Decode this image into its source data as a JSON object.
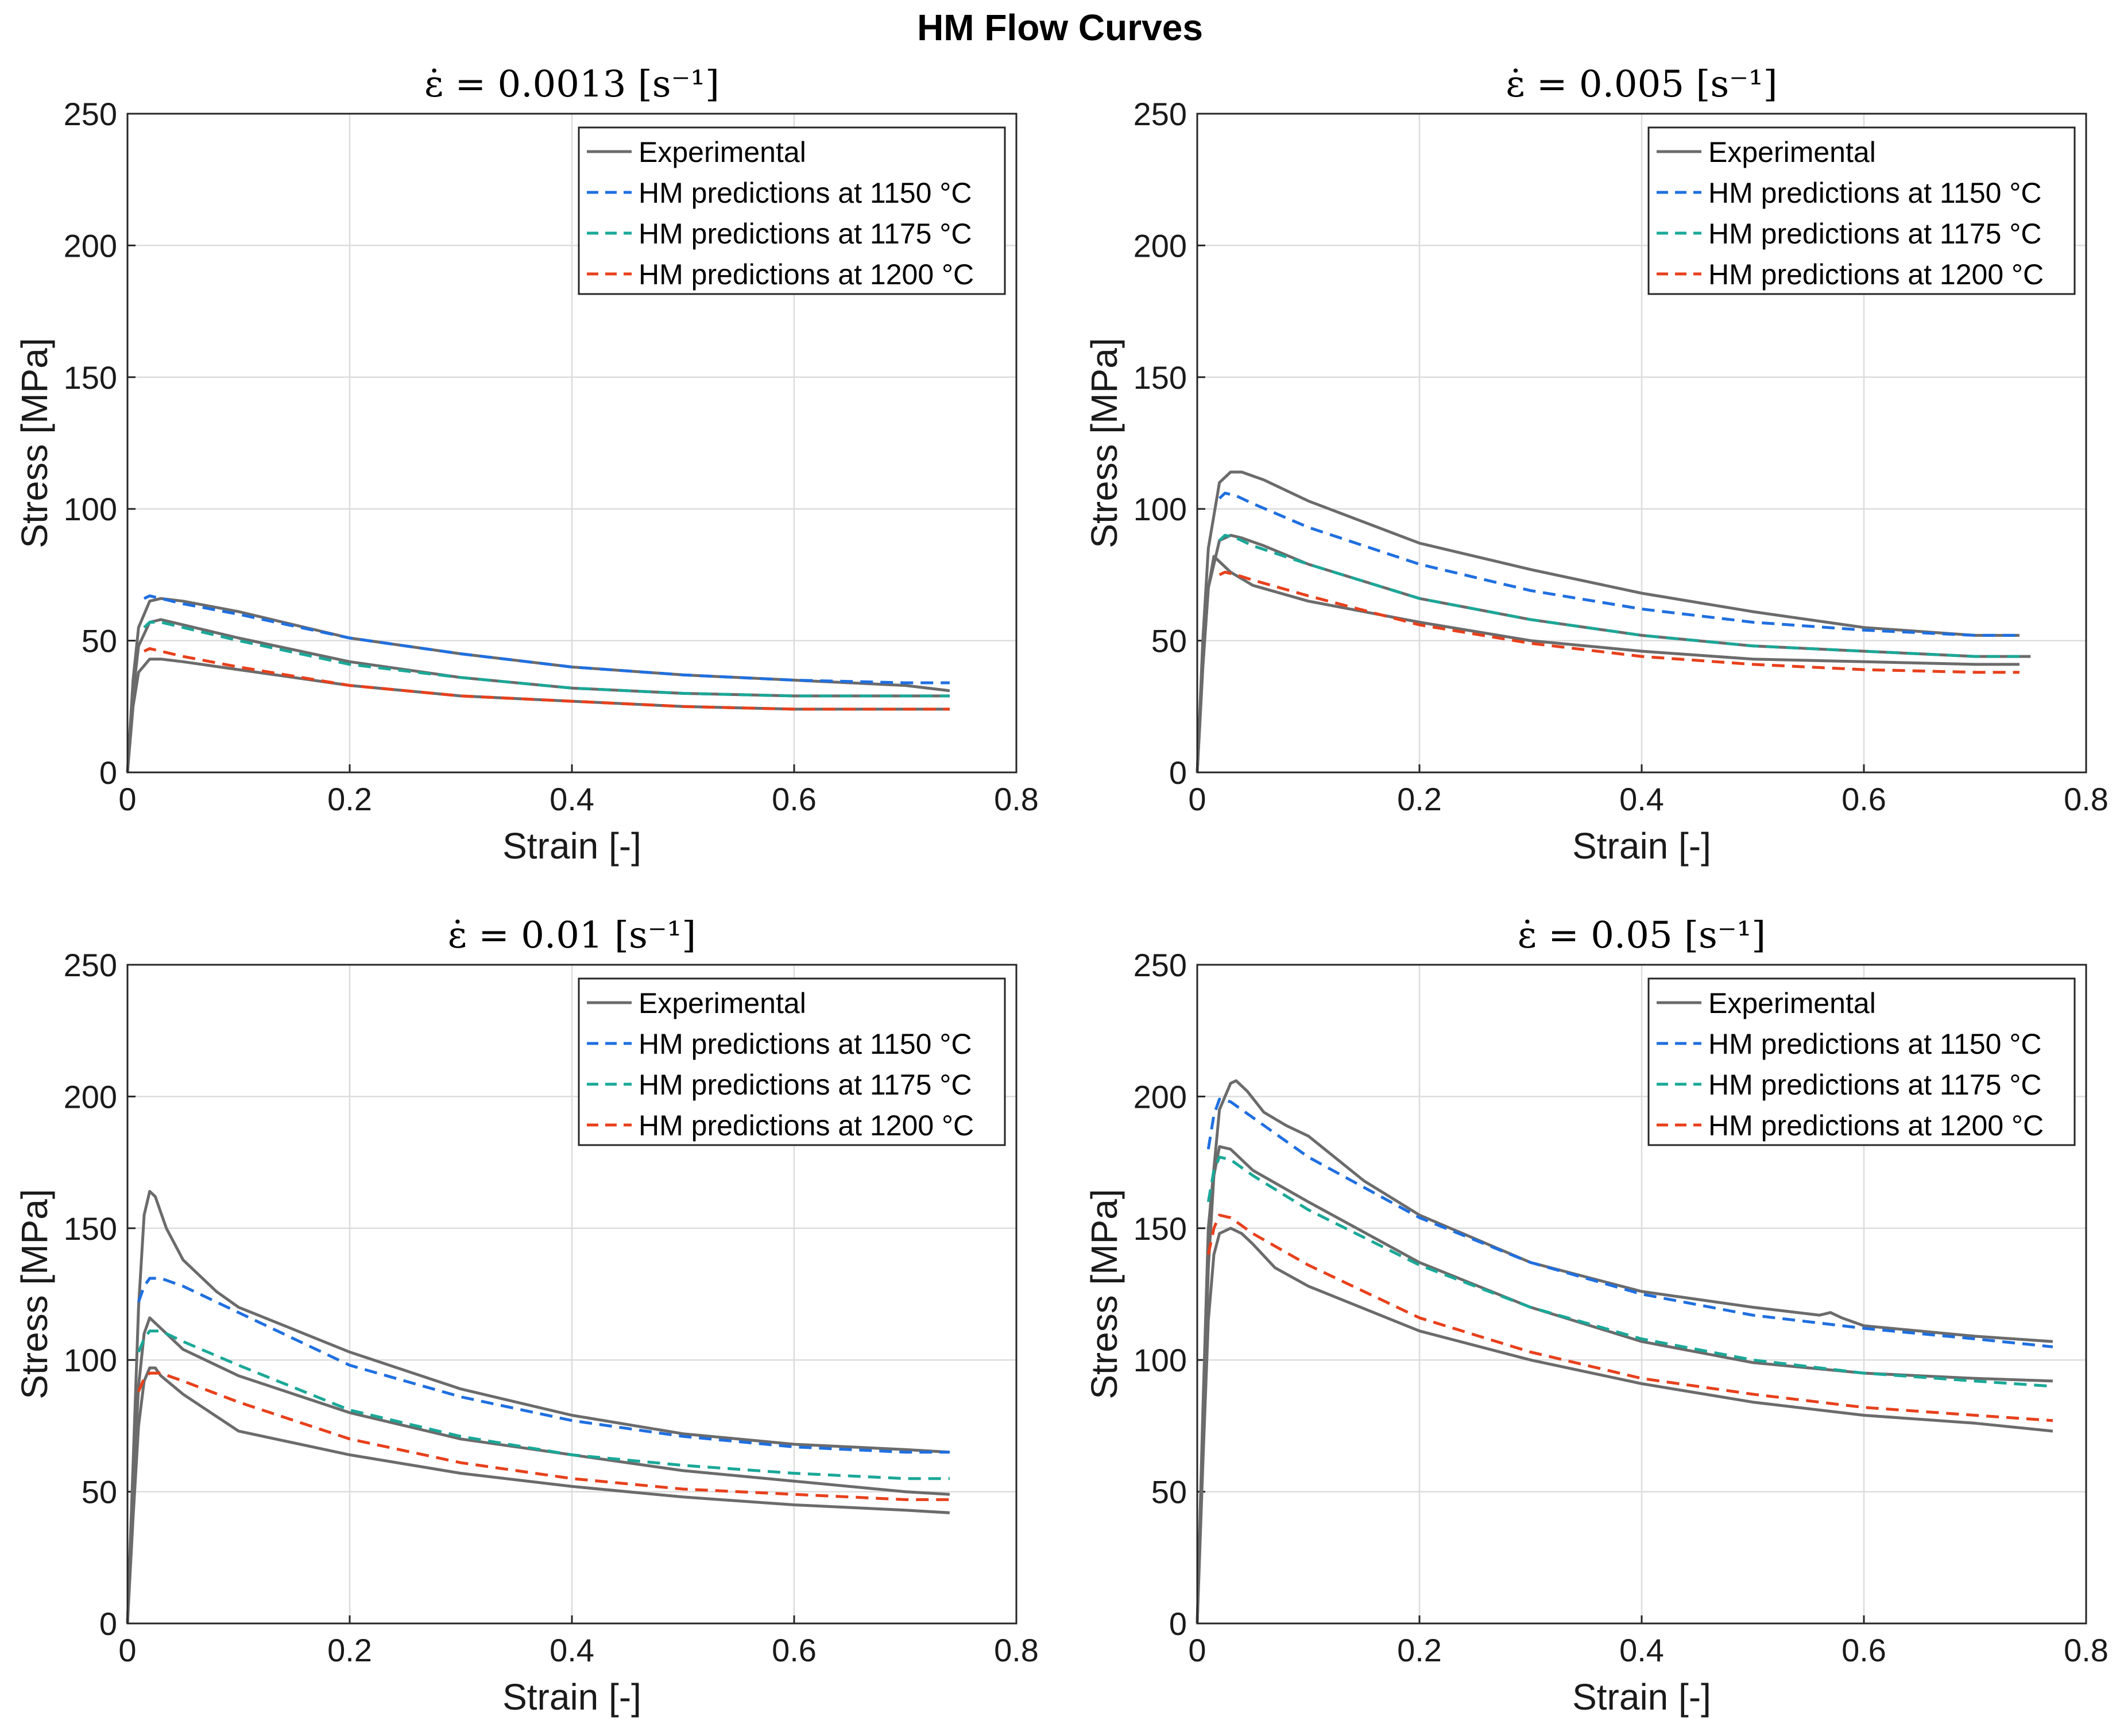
{
  "figure_title": "HM Flow Curves",
  "colors": {
    "experimental": "#6b6b6b",
    "t1150": "#1f6fe0",
    "t1175": "#1aa898",
    "t1200": "#e8401c",
    "grid": "#dcdcdc",
    "axis": "#262626"
  },
  "chart_data": [
    {
      "type": "line",
      "title": "ε̇ = 0.0013 [s⁻¹]",
      "xlabel": "Strain [-]",
      "ylabel": "Stress [MPa]",
      "xlim": [
        0,
        0.8
      ],
      "ylim": [
        0,
        250
      ],
      "xticks": [
        "0",
        "0.2",
        "0.4",
        "0.6",
        "0.8"
      ],
      "yticks": [
        "0",
        "50",
        "100",
        "150",
        "200",
        "250"
      ],
      "grid": true,
      "legend": [
        "Experimental",
        "HM predictions at 1150 °C",
        "HM predictions at 1175 °C",
        "HM predictions at 1200 °C"
      ],
      "legend_position": "top-right",
      "series": [
        {
          "name": "Experimental 1150 °C",
          "style": "experimental",
          "x": [
            0,
            0.005,
            0.01,
            0.02,
            0.03,
            0.05,
            0.1,
            0.2,
            0.3,
            0.4,
            0.5,
            0.6,
            0.7,
            0.74
          ],
          "y": [
            0,
            35,
            55,
            65,
            66,
            65,
            61,
            51,
            45,
            40,
            37,
            35,
            33,
            31
          ]
        },
        {
          "name": "Experimental 1175 °C",
          "style": "experimental",
          "x": [
            0,
            0.005,
            0.01,
            0.02,
            0.03,
            0.05,
            0.1,
            0.2,
            0.3,
            0.4,
            0.5,
            0.6,
            0.7,
            0.74
          ],
          "y": [
            0,
            30,
            48,
            57,
            58,
            56,
            51,
            42,
            36,
            32,
            30,
            29,
            29,
            29
          ]
        },
        {
          "name": "Experimental 1200 °C",
          "style": "experimental",
          "x": [
            0,
            0.005,
            0.01,
            0.02,
            0.03,
            0.05,
            0.1,
            0.2,
            0.3,
            0.4,
            0.5,
            0.6,
            0.7,
            0.74
          ],
          "y": [
            0,
            25,
            38,
            43,
            43,
            42,
            39,
            33,
            29,
            27,
            25,
            24,
            24,
            24
          ]
        },
        {
          "name": "HM predictions at 1150 °C",
          "style": "t1150",
          "x": [
            0.015,
            0.02,
            0.03,
            0.05,
            0.1,
            0.2,
            0.3,
            0.4,
            0.5,
            0.6,
            0.7,
            0.74
          ],
          "y": [
            66,
            67,
            66,
            64,
            60,
            51,
            45,
            40,
            37,
            35,
            34,
            34
          ]
        },
        {
          "name": "HM predictions at 1175 °C",
          "style": "t1175",
          "x": [
            0.015,
            0.02,
            0.03,
            0.05,
            0.1,
            0.2,
            0.3,
            0.4,
            0.5,
            0.6,
            0.7,
            0.74
          ],
          "y": [
            55,
            57,
            57,
            55,
            50,
            41,
            36,
            32,
            30,
            29,
            29,
            29
          ]
        },
        {
          "name": "HM predictions at 1200 °C",
          "style": "t1200",
          "x": [
            0.015,
            0.02,
            0.03,
            0.05,
            0.1,
            0.2,
            0.3,
            0.4,
            0.5,
            0.6,
            0.7,
            0.74
          ],
          "y": [
            46,
            47,
            46,
            44,
            40,
            33,
            29,
            27,
            25,
            24,
            24,
            24
          ]
        }
      ]
    },
    {
      "type": "line",
      "title": "ε̇ = 0.005 [s⁻¹]",
      "xlabel": "Strain [-]",
      "ylabel": "Stress [MPa]",
      "xlim": [
        0,
        0.8
      ],
      "ylim": [
        0,
        250
      ],
      "xticks": [
        "0",
        "0.2",
        "0.4",
        "0.6",
        "0.8"
      ],
      "yticks": [
        "0",
        "50",
        "100",
        "150",
        "200",
        "250"
      ],
      "grid": true,
      "legend": [
        "Experimental",
        "HM predictions at 1150 °C",
        "HM predictions at 1175 °C",
        "HM predictions at 1200 °C"
      ],
      "legend_position": "top-right",
      "series": [
        {
          "name": "Experimental 1150 °C",
          "style": "experimental",
          "x": [
            0,
            0.005,
            0.01,
            0.02,
            0.03,
            0.04,
            0.06,
            0.1,
            0.2,
            0.3,
            0.4,
            0.5,
            0.6,
            0.7,
            0.74
          ],
          "y": [
            0,
            50,
            85,
            110,
            114,
            114,
            111,
            103,
            87,
            77,
            68,
            61,
            55,
            52,
            52
          ]
        },
        {
          "name": "Experimental 1175 °C",
          "style": "experimental",
          "x": [
            0,
            0.005,
            0.01,
            0.02,
            0.03,
            0.04,
            0.06,
            0.1,
            0.2,
            0.3,
            0.4,
            0.5,
            0.6,
            0.7,
            0.75
          ],
          "y": [
            0,
            40,
            70,
            88,
            90,
            89,
            86,
            79,
            66,
            58,
            52,
            48,
            46,
            44,
            44
          ]
        },
        {
          "name": "Experimental 1200 °C",
          "style": "experimental",
          "x": [
            0,
            0.005,
            0.01,
            0.015,
            0.02,
            0.03,
            0.05,
            0.1,
            0.2,
            0.3,
            0.4,
            0.5,
            0.6,
            0.7,
            0.74
          ],
          "y": [
            0,
            40,
            70,
            82,
            80,
            76,
            71,
            65,
            57,
            50,
            46,
            43,
            42,
            41,
            41
          ]
        },
        {
          "name": "HM predictions at 1150 °C",
          "style": "t1150",
          "x": [
            0.02,
            0.025,
            0.035,
            0.05,
            0.1,
            0.2,
            0.3,
            0.4,
            0.5,
            0.6,
            0.7,
            0.74
          ],
          "y": [
            104,
            106,
            105,
            102,
            93,
            79,
            69,
            62,
            57,
            54,
            52,
            52
          ]
        },
        {
          "name": "HM predictions at 1175 °C",
          "style": "t1175",
          "x": [
            0.02,
            0.025,
            0.035,
            0.05,
            0.1,
            0.2,
            0.3,
            0.4,
            0.5,
            0.6,
            0.7,
            0.74
          ],
          "y": [
            88,
            90,
            89,
            86,
            79,
            66,
            58,
            52,
            48,
            46,
            44,
            44
          ]
        },
        {
          "name": "HM predictions at 1200 °C",
          "style": "t1200",
          "x": [
            0.02,
            0.025,
            0.035,
            0.05,
            0.1,
            0.2,
            0.3,
            0.4,
            0.5,
            0.6,
            0.7,
            0.74
          ],
          "y": [
            75,
            76,
            75,
            73,
            67,
            56,
            49,
            44,
            41,
            39,
            38,
            38
          ]
        }
      ]
    },
    {
      "type": "line",
      "title": "ε̇ = 0.01 [s⁻¹]",
      "xlabel": "Strain [-]",
      "ylabel": "Stress [MPa]",
      "xlim": [
        0,
        0.8
      ],
      "ylim": [
        0,
        250
      ],
      "xticks": [
        "0",
        "0.2",
        "0.4",
        "0.6",
        "0.8"
      ],
      "yticks": [
        "0",
        "50",
        "100",
        "150",
        "200",
        "250"
      ],
      "grid": true,
      "legend": [
        "Experimental",
        "HM predictions at 1150 °C",
        "HM predictions at 1175 °C",
        "HM predictions at 1200 °C"
      ],
      "legend_position": "top-right",
      "series": [
        {
          "name": "Experimental 1150 °C",
          "style": "experimental",
          "x": [
            0,
            0.005,
            0.01,
            0.015,
            0.02,
            0.025,
            0.035,
            0.05,
            0.08,
            0.1,
            0.2,
            0.3,
            0.4,
            0.5,
            0.6,
            0.7,
            0.74
          ],
          "y": [
            0,
            60,
            120,
            155,
            164,
            162,
            150,
            138,
            126,
            120,
            103,
            89,
            79,
            72,
            68,
            66,
            65
          ]
        },
        {
          "name": "Experimental 1175 °C",
          "style": "experimental",
          "x": [
            0,
            0.005,
            0.01,
            0.015,
            0.02,
            0.03,
            0.05,
            0.1,
            0.2,
            0.3,
            0.4,
            0.5,
            0.6,
            0.7,
            0.74
          ],
          "y": [
            0,
            50,
            90,
            110,
            116,
            112,
            104,
            94,
            80,
            70,
            64,
            58,
            54,
            50,
            49
          ]
        },
        {
          "name": "Experimental 1200 °C",
          "style": "experimental",
          "x": [
            0,
            0.005,
            0.01,
            0.015,
            0.02,
            0.025,
            0.03,
            0.05,
            0.1,
            0.2,
            0.3,
            0.4,
            0.5,
            0.6,
            0.7,
            0.74
          ],
          "y": [
            0,
            40,
            75,
            92,
            97,
            97,
            94,
            87,
            73,
            64,
            57,
            52,
            48,
            45,
            43,
            42
          ]
        },
        {
          "name": "HM predictions at 1150 °C",
          "style": "t1150",
          "x": [
            0.01,
            0.015,
            0.02,
            0.03,
            0.05,
            0.1,
            0.2,
            0.3,
            0.4,
            0.5,
            0.6,
            0.7,
            0.74
          ],
          "y": [
            122,
            128,
            131,
            131,
            128,
            118,
            98,
            86,
            77,
            71,
            67,
            65,
            65
          ]
        },
        {
          "name": "HM predictions at 1175 °C",
          "style": "t1175",
          "x": [
            0.01,
            0.015,
            0.02,
            0.03,
            0.05,
            0.1,
            0.2,
            0.3,
            0.4,
            0.5,
            0.6,
            0.7,
            0.74
          ],
          "y": [
            103,
            108,
            111,
            111,
            107,
            98,
            81,
            71,
            64,
            60,
            57,
            55,
            55
          ]
        },
        {
          "name": "HM predictions at 1200 °C",
          "style": "t1200",
          "x": [
            0.01,
            0.015,
            0.02,
            0.03,
            0.05,
            0.1,
            0.2,
            0.3,
            0.4,
            0.5,
            0.6,
            0.7,
            0.74
          ],
          "y": [
            88,
            93,
            95,
            95,
            92,
            84,
            70,
            61,
            55,
            51,
            49,
            47,
            47
          ]
        }
      ]
    },
    {
      "type": "line",
      "title": "ε̇ = 0.05 [s⁻¹]",
      "xlabel": "Strain [-]",
      "ylabel": "Stress [MPa]",
      "xlim": [
        0,
        0.8
      ],
      "ylim": [
        0,
        250
      ],
      "xticks": [
        "0",
        "0.2",
        "0.4",
        "0.6",
        "0.8"
      ],
      "yticks": [
        "0",
        "50",
        "100",
        "150",
        "200",
        "250"
      ],
      "grid": true,
      "legend": [
        "Experimental",
        "HM predictions at 1150 °C",
        "HM predictions at 1175 °C",
        "HM predictions at 1200 °C"
      ],
      "legend_position": "top-right",
      "series": [
        {
          "name": "Experimental 1150 °C",
          "style": "experimental",
          "x": [
            0,
            0.005,
            0.01,
            0.02,
            0.03,
            0.035,
            0.045,
            0.06,
            0.08,
            0.1,
            0.15,
            0.2,
            0.3,
            0.4,
            0.5,
            0.56,
            0.57,
            0.58,
            0.6,
            0.7,
            0.77
          ],
          "y": [
            0,
            80,
            150,
            195,
            205,
            206,
            202,
            194,
            189,
            185,
            168,
            155,
            137,
            126,
            120,
            117,
            118,
            116,
            113,
            109,
            107
          ]
        },
        {
          "name": "Experimental 1175 °C",
          "style": "experimental",
          "x": [
            0,
            0.005,
            0.01,
            0.015,
            0.02,
            0.03,
            0.05,
            0.1,
            0.2,
            0.3,
            0.4,
            0.5,
            0.6,
            0.7,
            0.77
          ],
          "y": [
            0,
            70,
            135,
            170,
            181,
            180,
            172,
            160,
            137,
            120,
            107,
            99,
            95,
            93,
            92
          ]
        },
        {
          "name": "Experimental 1200 °C",
          "style": "experimental",
          "x": [
            0,
            0.005,
            0.01,
            0.015,
            0.02,
            0.03,
            0.04,
            0.05,
            0.07,
            0.1,
            0.2,
            0.3,
            0.4,
            0.5,
            0.6,
            0.7,
            0.77
          ],
          "y": [
            0,
            60,
            115,
            140,
            148,
            150,
            148,
            144,
            135,
            128,
            111,
            100,
            91,
            84,
            79,
            76,
            73
          ]
        },
        {
          "name": "HM predictions at 1150 °C",
          "style": "t1150",
          "x": [
            0.01,
            0.015,
            0.02,
            0.03,
            0.05,
            0.1,
            0.2,
            0.3,
            0.4,
            0.5,
            0.6,
            0.7,
            0.77
          ],
          "y": [
            180,
            193,
            199,
            198,
            192,
            177,
            154,
            137,
            125,
            117,
            112,
            108,
            105
          ]
        },
        {
          "name": "HM predictions at 1175 °C",
          "style": "t1175",
          "x": [
            0.01,
            0.015,
            0.02,
            0.03,
            0.05,
            0.1,
            0.2,
            0.3,
            0.4,
            0.5,
            0.6,
            0.7,
            0.77
          ],
          "y": [
            160,
            172,
            177,
            176,
            170,
            157,
            136,
            120,
            108,
            100,
            95,
            92,
            90
          ]
        },
        {
          "name": "HM predictions at 1200 °C",
          "style": "t1200",
          "x": [
            0.01,
            0.015,
            0.02,
            0.03,
            0.05,
            0.1,
            0.2,
            0.3,
            0.4,
            0.5,
            0.6,
            0.7,
            0.77
          ],
          "y": [
            140,
            150,
            155,
            154,
            148,
            136,
            116,
            103,
            93,
            87,
            82,
            79,
            77
          ]
        }
      ]
    }
  ]
}
